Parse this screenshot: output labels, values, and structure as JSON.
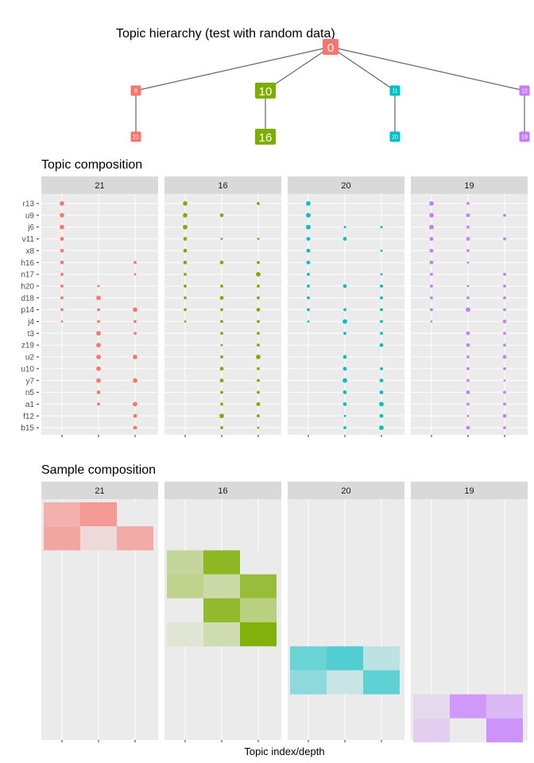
{
  "colors": {
    "red": "#F8766D",
    "green": "#7CAE00",
    "cyan": "#00BFC4",
    "purple": "#C77CFF",
    "panel_bg": "#EBEBEB",
    "strip_bg": "#D9D9D9",
    "edge": "#666666"
  },
  "tree": {
    "title": "Topic hierarchy (test with random data)",
    "nodes": [
      {
        "id": "n0",
        "label": "0",
        "color": "red",
        "size": "lg"
      },
      {
        "id": "n8",
        "label": "8",
        "color": "red",
        "size": "sm"
      },
      {
        "id": "n10",
        "label": "10",
        "color": "green",
        "size": "lg"
      },
      {
        "id": "n11",
        "label": "11",
        "color": "cyan",
        "size": "sm"
      },
      {
        "id": "n12",
        "label": "12",
        "color": "purple",
        "size": "sm"
      },
      {
        "id": "n21",
        "label": "21",
        "color": "red",
        "size": "sm"
      },
      {
        "id": "n16",
        "label": "16",
        "color": "green",
        "size": "lg"
      },
      {
        "id": "n20",
        "label": "20",
        "color": "cyan",
        "size": "sm"
      },
      {
        "id": "n19",
        "label": "19",
        "color": "purple",
        "size": "sm"
      }
    ],
    "edges": [
      [
        "n0",
        "n8"
      ],
      [
        "n0",
        "n10"
      ],
      [
        "n0",
        "n11"
      ],
      [
        "n0",
        "n12"
      ],
      [
        "n8",
        "n21"
      ],
      [
        "n10",
        "n16"
      ],
      [
        "n11",
        "n20"
      ],
      [
        "n12",
        "n19"
      ]
    ]
  },
  "chart_data": [
    {
      "type": "scatter",
      "title": "Topic composition",
      "panels": [
        "21",
        "16",
        "20",
        "19"
      ],
      "panel_colors": [
        "red",
        "green",
        "cyan",
        "purple"
      ],
      "words": [
        "r13",
        "u9",
        "j6",
        "v11",
        "x8",
        "h16",
        "n17",
        "h20",
        "d18",
        "p14",
        "j4",
        "t3",
        "z19",
        "u2",
        "u10",
        "y7",
        "n5",
        "a1",
        "f12",
        "b15"
      ],
      "depth_levels": [
        1,
        2,
        3
      ],
      "points": [
        [
          [
            [
              1,
              3
            ]
          ],
          [
            [
              1,
              3
            ]
          ],
          [
            [
              1,
              3
            ]
          ],
          [
            [
              1,
              2.5
            ]
          ],
          [
            [
              1,
              2.5
            ]
          ],
          [
            [
              1,
              2.5
            ],
            [
              3,
              2
            ]
          ],
          [
            [
              1,
              2
            ],
            [
              3,
              1.5
            ]
          ],
          [
            [
              1,
              2
            ],
            [
              2,
              1.5
            ]
          ],
          [
            [
              1,
              2
            ],
            [
              2,
              3
            ]
          ],
          [
            [
              1,
              2
            ],
            [
              2,
              2
            ],
            [
              3,
              3
            ]
          ],
          [
            [
              1,
              1.5
            ],
            [
              2,
              2
            ],
            [
              3,
              2
            ]
          ],
          [
            [
              2,
              3
            ],
            [
              3,
              2
            ]
          ],
          [
            [
              2,
              3
            ]
          ],
          [
            [
              2,
              3
            ],
            [
              3,
              3
            ]
          ],
          [
            [
              2,
              3
            ]
          ],
          [
            [
              2,
              3
            ],
            [
              3,
              3
            ]
          ],
          [
            [
              2,
              2.5
            ]
          ],
          [
            [
              2,
              2
            ],
            [
              3,
              3
            ]
          ],
          [
            [
              3,
              2.5
            ]
          ],
          [
            [
              3,
              2.5
            ]
          ]
        ],
        [
          [
            [
              1,
              3
            ],
            [
              3,
              2
            ]
          ],
          [
            [
              1,
              3
            ],
            [
              2,
              2.5
            ]
          ],
          [
            [
              1,
              3
            ]
          ],
          [
            [
              1,
              2.5
            ],
            [
              2,
              1.5
            ],
            [
              3,
              1.5
            ]
          ],
          [
            [
              1,
              2.5
            ]
          ],
          [
            [
              1,
              2.5
            ],
            [
              2,
              2.5
            ],
            [
              3,
              2
            ]
          ],
          [
            [
              1,
              2
            ],
            [
              3,
              3
            ]
          ],
          [
            [
              1,
              2
            ],
            [
              2,
              2
            ],
            [
              3,
              2
            ]
          ],
          [
            [
              1,
              2
            ],
            [
              2,
              2.5
            ],
            [
              3,
              2
            ]
          ],
          [
            [
              1,
              2
            ],
            [
              2,
              2
            ],
            [
              3,
              2.5
            ]
          ],
          [
            [
              1,
              1.5
            ],
            [
              2,
              2
            ],
            [
              3,
              2
            ]
          ],
          [
            [
              2,
              2
            ],
            [
              3,
              2
            ]
          ],
          [
            [
              2,
              1.5
            ],
            [
              3,
              2
            ]
          ],
          [
            [
              2,
              2
            ],
            [
              3,
              3
            ]
          ],
          [
            [
              2,
              2.5
            ],
            [
              3,
              2
            ]
          ],
          [
            [
              2,
              2.5
            ],
            [
              3,
              2
            ]
          ],
          [
            [
              2,
              2
            ],
            [
              3,
              2
            ]
          ],
          [
            [
              2,
              2
            ],
            [
              3,
              2.5
            ]
          ],
          [
            [
              2,
              3
            ],
            [
              3,
              2
            ]
          ],
          [
            [
              2,
              2
            ],
            [
              3,
              1.5
            ]
          ]
        ],
        [
          [
            [
              1,
              3
            ]
          ],
          [
            [
              1,
              3
            ]
          ],
          [
            [
              1,
              3
            ],
            [
              2,
              1.5
            ],
            [
              3,
              1.5
            ]
          ],
          [
            [
              1,
              2.5
            ],
            [
              2,
              2.5
            ]
          ],
          [
            [
              1,
              2.5
            ],
            [
              3,
              1.5
            ]
          ],
          [
            [
              1,
              2.5
            ]
          ],
          [
            [
              1,
              2
            ],
            [
              3,
              1.5
            ]
          ],
          [
            [
              1,
              2
            ],
            [
              2,
              2.5
            ],
            [
              3,
              2
            ]
          ],
          [
            [
              1,
              2
            ],
            [
              3,
              2
            ]
          ],
          [
            [
              1,
              2
            ],
            [
              2,
              2
            ],
            [
              3,
              2
            ]
          ],
          [
            [
              1,
              1.5
            ],
            [
              2,
              3
            ],
            [
              3,
              2
            ]
          ],
          [
            [
              2,
              2
            ],
            [
              3,
              2
            ]
          ],
          [
            [
              3,
              2.5
            ]
          ],
          [
            [
              2,
              2.5
            ]
          ],
          [
            [
              2,
              2.5
            ],
            [
              3,
              2
            ]
          ],
          [
            [
              2,
              3
            ],
            [
              3,
              2.5
            ]
          ],
          [
            [
              2,
              2.5
            ],
            [
              3,
              2.5
            ]
          ],
          [
            [
              2,
              2.5
            ],
            [
              3,
              3
            ]
          ],
          [
            [
              2,
              1.5
            ],
            [
              3,
              2.5
            ]
          ],
          [
            [
              2,
              2
            ],
            [
              3,
              3
            ]
          ]
        ],
        [
          [
            [
              1,
              3
            ],
            [
              2,
              2
            ]
          ],
          [
            [
              1,
              3
            ],
            [
              2,
              2.5
            ],
            [
              3,
              2
            ]
          ],
          [
            [
              1,
              3
            ],
            [
              2,
              2
            ]
          ],
          [
            [
              1,
              2.5
            ],
            [
              2,
              2.5
            ],
            [
              3,
              2
            ]
          ],
          [
            [
              1,
              2.5
            ],
            [
              2,
              2
            ]
          ],
          [
            [
              1,
              2.5
            ],
            [
              2,
              1.5
            ]
          ],
          [
            [
              1,
              2
            ],
            [
              3,
              2
            ]
          ],
          [
            [
              1,
              2
            ],
            [
              2,
              1.5
            ],
            [
              3,
              2
            ]
          ],
          [
            [
              1,
              2
            ],
            [
              2,
              2
            ],
            [
              3,
              2
            ]
          ],
          [
            [
              1,
              2
            ],
            [
              2,
              3
            ],
            [
              3,
              2
            ]
          ],
          [
            [
              1,
              1.5
            ],
            [
              3,
              2.5
            ]
          ],
          [
            [
              2,
              2.5
            ],
            [
              3,
              2
            ]
          ],
          [
            [
              2,
              2.5
            ],
            [
              3,
              2
            ]
          ],
          [
            [
              2,
              2
            ],
            [
              3,
              2.5
            ]
          ],
          [
            [
              2,
              2
            ],
            [
              3,
              2
            ]
          ],
          [
            [
              2,
              2
            ],
            [
              3,
              1.5
            ]
          ],
          [
            [
              2,
              2.5
            ],
            [
              3,
              2
            ]
          ],
          [
            [
              2,
              2
            ],
            [
              3,
              2
            ]
          ],
          [
            [
              2,
              1.5
            ],
            [
              3,
              2.5
            ]
          ],
          [
            [
              2,
              2.5
            ],
            [
              3,
              2
            ]
          ]
        ]
      ]
    },
    {
      "type": "heatmap",
      "title": "Sample composition",
      "xlabel": "Topic index/depth",
      "panels": [
        "21",
        "16",
        "20",
        "19"
      ],
      "panel_colors": [
        "red",
        "green",
        "cyan",
        "purple"
      ],
      "depth_levels": [
        1,
        2,
        3
      ],
      "row_count": 10,
      "rows_used": [
        [
          0,
          1
        ],
        [
          2,
          3,
          4,
          5
        ],
        [
          6,
          7
        ],
        [
          8,
          9
        ]
      ],
      "cells": [
        [
          [
            0.5,
            0.7,
            0.0
          ],
          [
            0.6,
            0.15,
            0.55
          ]
        ],
        [
          [
            0.35,
            0.85,
            0.0
          ],
          [
            0.4,
            0.3,
            0.75
          ],
          [
            0.0,
            0.8,
            0.45
          ],
          [
            0.1,
            0.25,
            0.95
          ]
        ],
        [
          [
            0.55,
            0.65,
            0.2
          ],
          [
            0.4,
            0.15,
            0.6
          ]
        ],
        [
          [
            0.15,
            0.75,
            0.45
          ],
          [
            0.25,
            0.0,
            0.8
          ]
        ]
      ]
    }
  ]
}
